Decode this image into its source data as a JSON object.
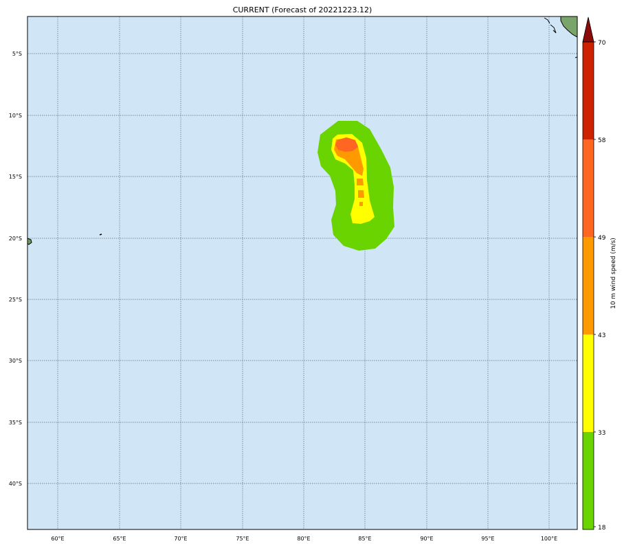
{
  "title": "CURRENT (Forecast of 20221223.12)",
  "map": {
    "lon_range": [
      57.5,
      102.3
    ],
    "lat_range": [
      -43.7,
      -2.0
    ],
    "ocean_color": "#d0e6f6",
    "grid": "dotted",
    "lon_ticks": [
      "60°E",
      "65°E",
      "70°E",
      "75°E",
      "80°E",
      "85°E",
      "90°E",
      "95°E",
      "100°E"
    ],
    "lat_ticks": [
      "5°S",
      "10°S",
      "15°S",
      "20°S",
      "25°S",
      "30°S",
      "35°S",
      "40°S"
    ]
  },
  "colorbar": {
    "label": "10 m wind speed (m/s)",
    "tick_labels": [
      "18",
      "33",
      "43",
      "49",
      "58",
      "70"
    ],
    "bands": [
      {
        "from": 18,
        "to": 33,
        "color": "#6ad400"
      },
      {
        "from": 33,
        "to": 43,
        "color": "#ffff00"
      },
      {
        "from": 43,
        "to": 49,
        "color": "#ff9900"
      },
      {
        "from": 49,
        "to": 58,
        "color": "#ff6622"
      },
      {
        "from": 58,
        "to": 70,
        "color": "#cc2200"
      },
      {
        "from": 70,
        "to": null,
        "color": "#8b0a0a"
      }
    ]
  }
}
